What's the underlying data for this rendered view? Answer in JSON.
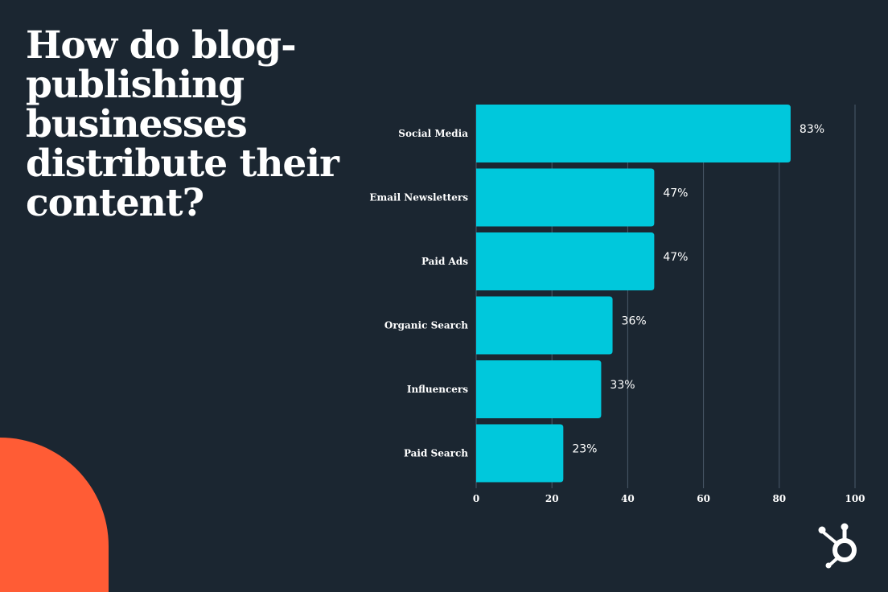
{
  "headline": "How do blog-publishing businesses distribute their content?",
  "colors": {
    "background": "#1b2631",
    "bar": "#00c8dc",
    "accent": "#ff5c35",
    "text": "#ffffff",
    "grid": "#4a5a6a"
  },
  "brand": {
    "logo_icon": "hubspot-sprocket-icon"
  },
  "chart_data": {
    "type": "bar",
    "orientation": "horizontal",
    "title": "",
    "categories": [
      "Social Media",
      "Email Newsletters",
      "Paid Ads",
      "Organic Search",
      "Influencers",
      "Paid Search"
    ],
    "values": [
      83,
      47,
      47,
      36,
      33,
      23
    ],
    "data_labels": [
      "83%",
      "47%",
      "47%",
      "36%",
      "33%",
      "23%"
    ],
    "xlim": [
      0,
      100
    ],
    "xticks": [
      0,
      20,
      40,
      60,
      80,
      100
    ],
    "grid": true,
    "xlabel": "",
    "ylabel": ""
  }
}
